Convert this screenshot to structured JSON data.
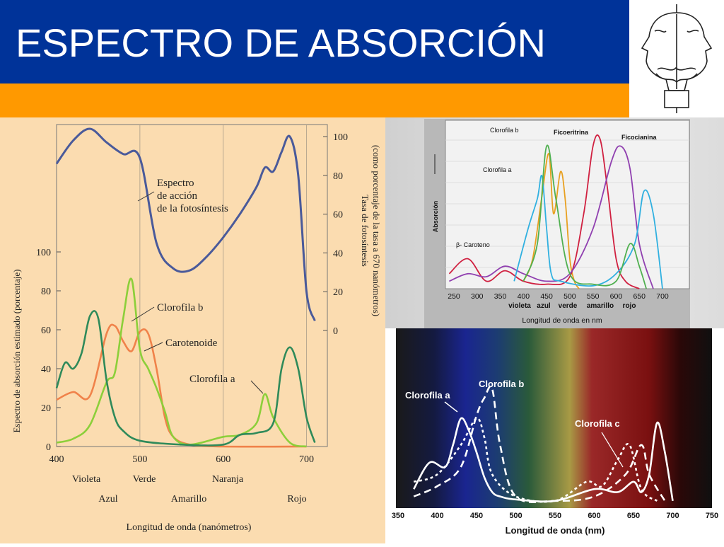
{
  "slide": {
    "title": "ESPECTRO DE ABSORCIÓN",
    "colors": {
      "header": "#003399",
      "bar": "#ff9900",
      "left_panel": "#fbdcb0"
    }
  },
  "logo": {
    "icon": "janus-two-faced-head-icon"
  },
  "chart_data": [
    {
      "type": "line",
      "left_ylabel": "Espectro de absorción estimado (porcentaje)",
      "right_ylabel_1": "Tasa de fotosíntesis",
      "right_ylabel_2": "(como porcentaje de la tasa a 670 nanómetros)",
      "xlabel": "Longitud de onda (nanómetros)",
      "xlim": [
        400,
        725
      ],
      "ylim": [
        0,
        100
      ],
      "x_ticks": [
        "400",
        "500",
        "600",
        "700"
      ],
      "y_ticks_left": [
        "0",
        "20",
        "40",
        "60",
        "80",
        "100"
      ],
      "y_ticks_right": [
        "0",
        "20",
        "40",
        "60",
        "80",
        "100"
      ],
      "color_names_row1": [
        "Violeta",
        "Verde",
        "Naranja"
      ],
      "color_names_row2": [
        "Azul",
        "Amarillo",
        "Rojo"
      ],
      "annotations": {
        "action_1": "Espectro",
        "action_2": "de acción",
        "action_3": "de la fotosíntesis",
        "clorofila_b": "Clorofila b",
        "carotenoide": "Carotenoide",
        "clorofila_a": "Clorofila a"
      },
      "series": [
        {
          "name": "Espectro de acción de la fotosíntesis",
          "color": "#4a5a9a",
          "axis": "right",
          "x": [
            400,
            420,
            440,
            460,
            480,
            500,
            520,
            540,
            560,
            580,
            600,
            620,
            640,
            650,
            660,
            670,
            680,
            690,
            700,
            710
          ],
          "y": [
            86,
            98,
            104,
            97,
            91,
            89,
            45,
            32,
            31,
            38,
            48,
            60,
            74,
            84,
            82,
            92,
            100,
            80,
            20,
            5
          ]
        },
        {
          "name": "Clorofila b",
          "color": "#f0824a",
          "axis": "left",
          "x": [
            400,
            420,
            440,
            460,
            470,
            480,
            490,
            500,
            510,
            520,
            530,
            540,
            560,
            600,
            700
          ],
          "y": [
            24,
            28,
            26,
            58,
            62,
            54,
            49,
            59,
            58,
            40,
            15,
            5,
            1,
            0,
            0
          ]
        },
        {
          "name": "Carotenoide",
          "color": "#8ccf3a",
          "axis": "left",
          "x": [
            400,
            420,
            440,
            460,
            470,
            480,
            490,
            500,
            510,
            520,
            530,
            540,
            560,
            600,
            620,
            640,
            650,
            660,
            680,
            700
          ],
          "y": [
            2,
            4,
            11,
            33,
            38,
            66,
            86,
            50,
            40,
            30,
            18,
            5,
            1,
            5,
            6,
            12,
            27,
            15,
            2,
            0
          ]
        },
        {
          "name": "Clorofila a",
          "color": "#2f8a5a",
          "axis": "left",
          "x": [
            400,
            410,
            420,
            430,
            440,
            450,
            460,
            470,
            480,
            500,
            550,
            600,
            620,
            640,
            660,
            670,
            680,
            690,
            700,
            710
          ],
          "y": [
            30,
            43,
            40,
            48,
            67,
            66,
            34,
            15,
            8,
            3,
            1,
            1,
            6,
            7,
            12,
            40,
            51,
            40,
            15,
            2
          ]
        }
      ]
    },
    {
      "type": "line",
      "ylabel": "Absorción",
      "xlabel": "Longitud de onda en nm",
      "x_ticks": [
        "250",
        "300",
        "350",
        "400",
        "450",
        "500",
        "550",
        "600",
        "650",
        "700"
      ],
      "xlim": [
        230,
        710
      ],
      "color_names": [
        "violeta",
        "azul",
        "verde",
        "amarillo",
        "rojo"
      ],
      "labels": {
        "clorofila_b": "Clorofila b",
        "ficoeritrina": "Ficoeritrina",
        "ficocianina": "Ficocianina",
        "clorofila_a": "Clorofila a",
        "caroteno": "β- Caroteno"
      },
      "series": [
        {
          "name": "Clorofila b",
          "color": "#e8a020",
          "x": [
            400,
            420,
            440,
            455,
            465,
            480,
            490,
            500,
            510,
            520
          ],
          "y": [
            5,
            20,
            62,
            90,
            50,
            78,
            60,
            20,
            5,
            0
          ]
        },
        {
          "name": "Ficoeritrina",
          "color": "#d02040",
          "x": [
            240,
            280,
            320,
            360,
            400,
            450,
            500,
            530,
            550,
            565,
            580,
            600,
            620,
            650
          ],
          "y": [
            10,
            20,
            5,
            12,
            5,
            3,
            8,
            50,
            95,
            100,
            70,
            20,
            5,
            0
          ]
        },
        {
          "name": "Ficocianina",
          "color": "#9040b0",
          "x": [
            240,
            280,
            320,
            360,
            400,
            450,
            500,
            550,
            590,
            610,
            630,
            650,
            680
          ],
          "y": [
            5,
            10,
            8,
            15,
            10,
            5,
            10,
            40,
            85,
            95,
            80,
            30,
            0
          ]
        },
        {
          "name": "Clorofila a",
          "color": "#30b0e0",
          "x": [
            380,
            410,
            430,
            440,
            450,
            460,
            480,
            550,
            600,
            640,
            660,
            680,
            700
          ],
          "y": [
            5,
            40,
            60,
            75,
            40,
            10,
            5,
            2,
            10,
            30,
            65,
            50,
            0
          ]
        },
        {
          "name": "β- Caroteno",
          "color": "#50b050",
          "x": [
            400,
            430,
            450,
            470,
            500,
            550,
            600,
            630,
            650,
            665
          ],
          "y": [
            5,
            30,
            95,
            60,
            10,
            3,
            5,
            30,
            15,
            0
          ]
        }
      ]
    },
    {
      "type": "line",
      "xlabel": "Longitud de onda (nm)",
      "x_ticks": [
        "350",
        "400",
        "450",
        "500",
        "550",
        "600",
        "650",
        "700",
        "750"
      ],
      "xlim": [
        350,
        750
      ],
      "labels": {
        "clorofila_a": "Clorofila a",
        "clorofila_b": "Clorofila b",
        "clorofila_c": "Clorofila c"
      },
      "series": [
        {
          "name": "Clorofila a",
          "style": "solid",
          "x": [
            370,
            390,
            410,
            420,
            430,
            440,
            450,
            460,
            470,
            480,
            500,
            550,
            600,
            630,
            650,
            660,
            670,
            680,
            690,
            700
          ],
          "y": [
            10,
            28,
            25,
            40,
            58,
            50,
            35,
            18,
            8,
            5,
            3,
            2,
            10,
            8,
            15,
            8,
            20,
            55,
            35,
            2
          ]
        },
        {
          "name": "Clorofila b",
          "style": "dashed",
          "x": [
            370,
            400,
            430,
            450,
            460,
            470,
            480,
            500,
            550,
            600,
            640,
            660,
            670,
            690
          ],
          "y": [
            5,
            12,
            25,
            60,
            72,
            78,
            40,
            5,
            2,
            5,
            20,
            40,
            20,
            2
          ]
        },
        {
          "name": "Clorofila c",
          "style": "dotted",
          "x": [
            370,
            400,
            430,
            450,
            460,
            470,
            500,
            550,
            590,
            610,
            630,
            645,
            660,
            680
          ],
          "y": [
            15,
            20,
            40,
            58,
            45,
            20,
            5,
            2,
            15,
            12,
            30,
            40,
            10,
            2
          ]
        }
      ]
    }
  ]
}
